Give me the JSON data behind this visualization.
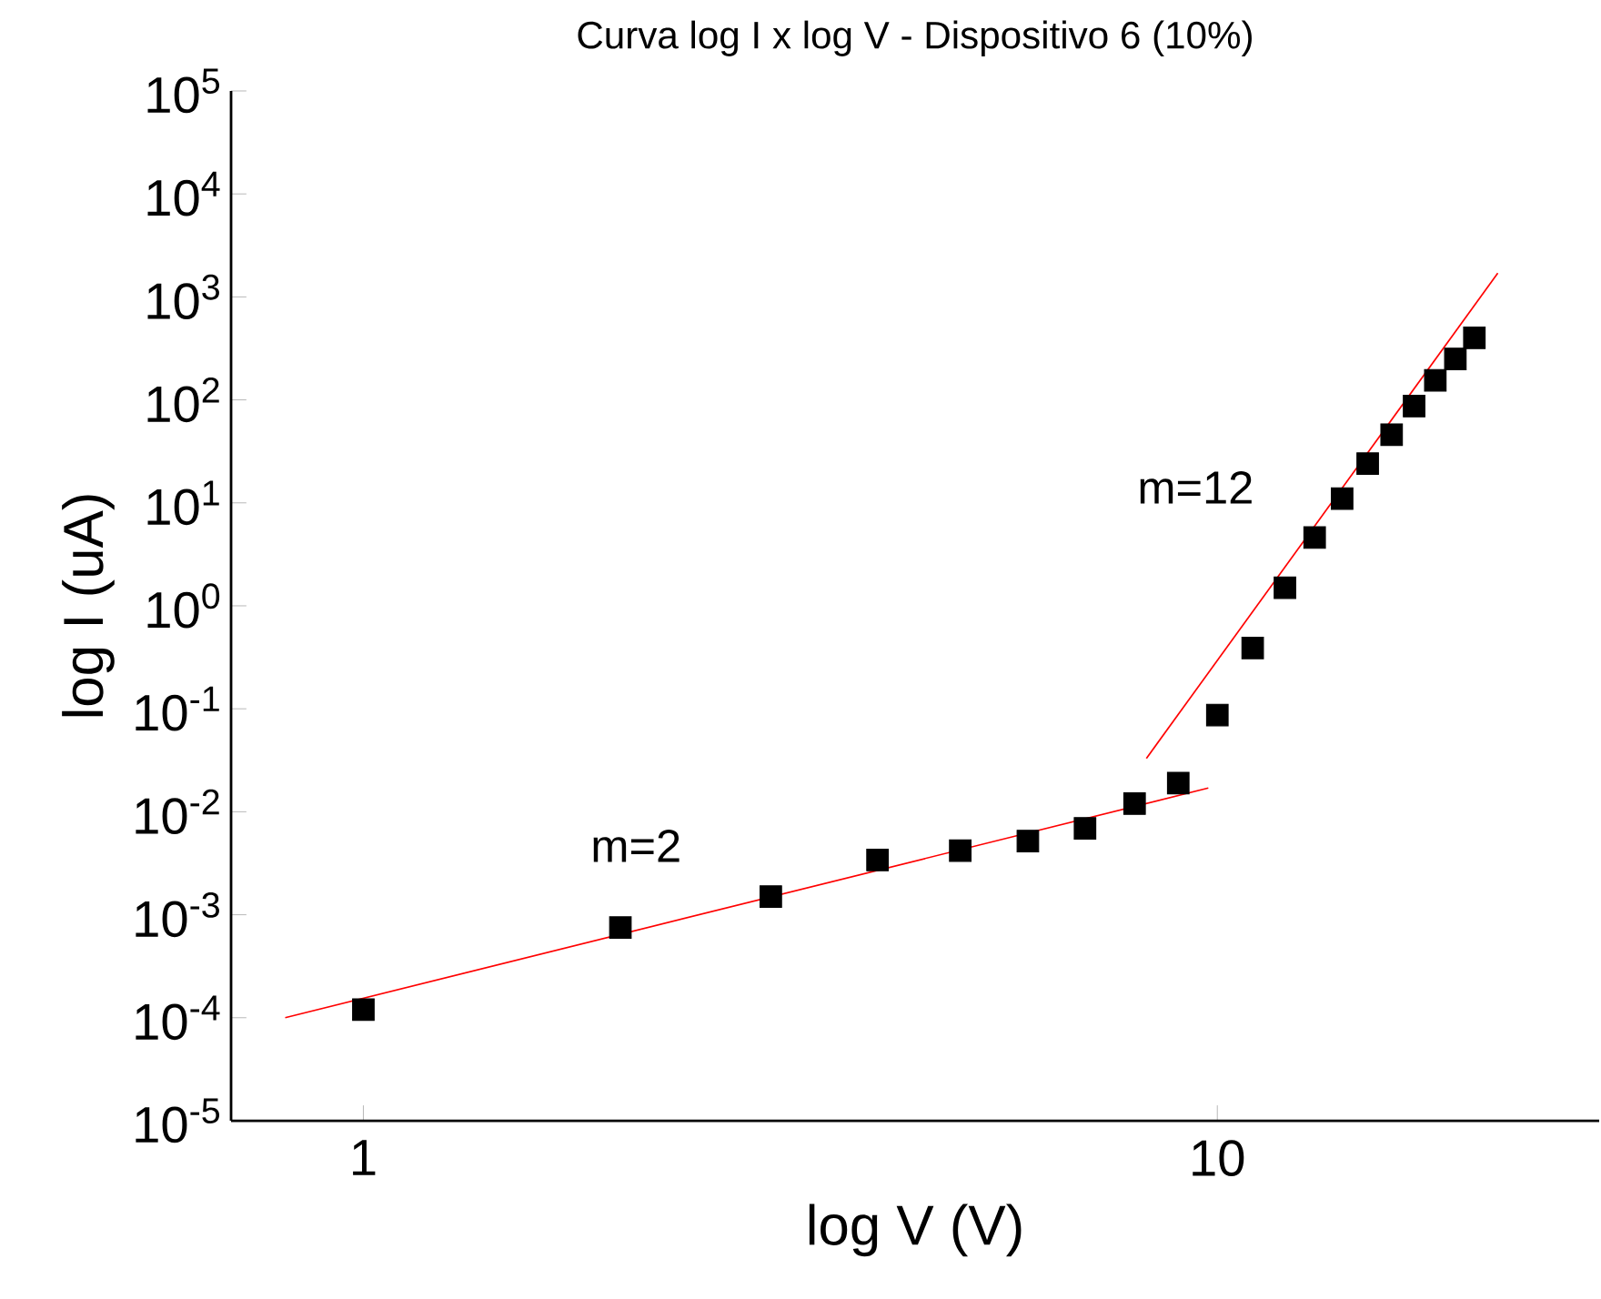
{
  "chart_data": {
    "type": "scatter",
    "title": "Curva log I x log V - Dispositivo 6 (10%)",
    "xlabel": "log V (V)",
    "ylabel": "log I (uA)",
    "log": "xy",
    "xlim": [
      0.7,
      28
    ],
    "ylim": [
      1e-05,
      100000.0
    ],
    "xticks": [
      1,
      10
    ],
    "yticks": [
      {
        "value": 1e-05,
        "label": "10$^{-5}$"
      },
      {
        "value": 0.0001,
        "label": "10$^{-4}$"
      },
      {
        "value": 0.001,
        "label": "10$^{-3}$"
      },
      {
        "value": 0.01,
        "label": "10$^{-2}$"
      },
      {
        "value": 0.1,
        "label": "10$^{-1}$"
      },
      {
        "value": 1,
        "label": "10$^{0}$"
      },
      {
        "value": 10,
        "label": "10$^{1}$"
      },
      {
        "value": 100,
        "label": "10$^{2}$"
      },
      {
        "value": 1000,
        "label": "10$^{3}$"
      },
      {
        "value": 10000,
        "label": "10$^{4}$"
      },
      {
        "value": 100000,
        "label": "10$^{5}$"
      }
    ],
    "grid": false,
    "marker": "square",
    "x": [
      1,
      2,
      3,
      4,
      5,
      6,
      7,
      8,
      9,
      10,
      11,
      12,
      13,
      14,
      15,
      16,
      17,
      18,
      19,
      20
    ],
    "series": [
      {
        "color": "#000000",
        "values": [
          0.00012,
          0.00075,
          0.0015,
          0.0034,
          0.0042,
          0.0052,
          0.0069,
          0.012,
          0.019,
          0.087,
          0.39,
          1.5,
          4.6,
          11,
          24,
          46,
          87,
          155,
          250,
          400
        ]
      },
      {
        "type": "line",
        "color": "#ff0000",
        "marker": "none",
        "x": [
          0.81,
          9.76
        ],
        "values": [
          0.0001,
          0.017
        ]
      },
      {
        "type": "line",
        "color": "#ff0000",
        "marker": "none",
        "x": [
          8.26,
          21.3
        ],
        "values": [
          0.033,
          1700
        ]
      }
    ],
    "annotations": [
      "m=2",
      "m=12"
    ]
  }
}
